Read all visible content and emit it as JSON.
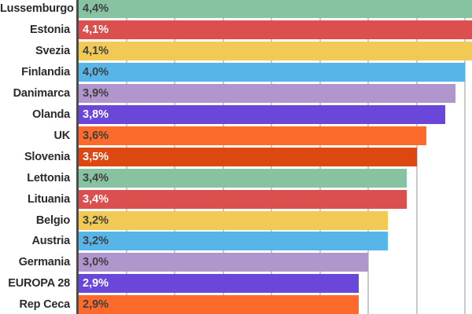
{
  "chart_data": {
    "type": "bar",
    "orientation": "horizontal",
    "title": "",
    "xlabel": "",
    "ylabel": "",
    "categories": [
      "Lussemburgo",
      "Estonia",
      "Svezia",
      "Finlandia",
      "Danimarca",
      "Olanda",
      "UK",
      "Slovenia",
      "Lettonia",
      "Lituania",
      "Belgio",
      "Austria",
      "Germania",
      "EUROPA 28",
      "Rep Ceca"
    ],
    "values": [
      4.4,
      4.1,
      4.1,
      4.0,
      3.9,
      3.8,
      3.6,
      3.5,
      3.4,
      3.4,
      3.2,
      3.2,
      3.0,
      2.9,
      2.9
    ],
    "value_labels": [
      "4,4%",
      "4,1%",
      "4,1%",
      "4,0%",
      "3,9%",
      "3,8%",
      "3,6%",
      "3,5%",
      "3,4%",
      "3,4%",
      "3,2%",
      "3,2%",
      "3,0%",
      "2,9%",
      "2,9%"
    ],
    "bar_colors": [
      "#87C3A0",
      "#DC4F4F",
      "#F0CA55",
      "#58B5E8",
      "#B195CD",
      "#6A46D9",
      "#FD6A2B",
      "#DD4712",
      "#87C3A0",
      "#DC4F4F",
      "#F0CA55",
      "#58B5E8",
      "#B195CD",
      "#6A46D9",
      "#FD6A2B"
    ],
    "value_label_colors": [
      "#3F3F3F",
      "#FFFFFF",
      "#3F3F3F",
      "#3F3F3F",
      "#3F3F3F",
      "#FFFFFF",
      "#3F3F3F",
      "#FFFFFF",
      "#3F3F3F",
      "#FFFFFF",
      "#3F3F3F",
      "#3F3F3F",
      "#3F3F3F",
      "#FFFFFF",
      "#3F3F3F"
    ],
    "xlim": [
      0,
      4.073
    ],
    "gridline_step": 0.5,
    "grid": true,
    "legend": false,
    "axis_color": "#4D4D4D",
    "gridline_color": "#C9C9C9",
    "category_label_color": "#2B2B2B",
    "background_color": "#FFFFFF",
    "layout": "chart cropped: top of first bar, bottom of last bar and right ends of bars over 4.07% are cut off at image edges"
  }
}
